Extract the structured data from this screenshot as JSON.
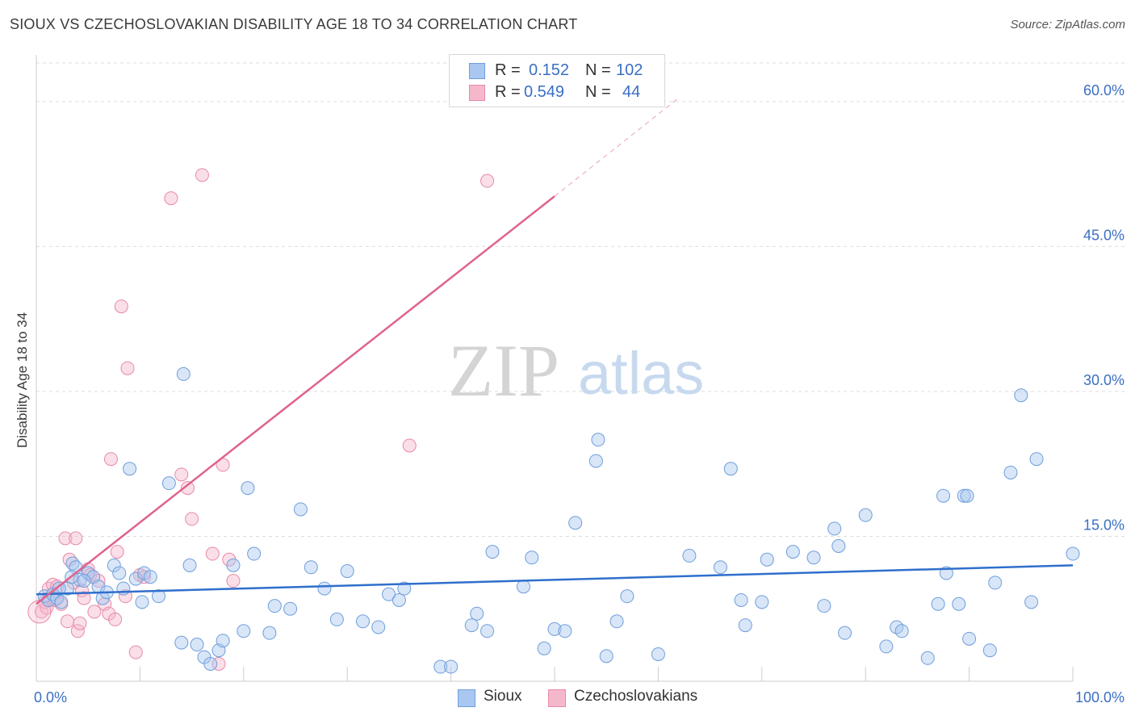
{
  "title": "SIOUX VS CZECHOSLOVAKIAN DISABILITY AGE 18 TO 34 CORRELATION CHART",
  "source": "Source: ZipAtlas.com",
  "watermark": {
    "zip": "ZIP",
    "atlas": "atlas"
  },
  "legend": {
    "r_label": "R =",
    "n_label": "N =",
    "sioux": {
      "r": "0.152",
      "n": "102"
    },
    "czech": {
      "r": "0.549",
      "n": "44"
    }
  },
  "colors": {
    "sioux_fill": "#a9c7f0",
    "sioux_stroke": "#6f9edb",
    "sioux_line": "#2f6fcc",
    "czech_fill": "#f5b8cb",
    "czech_stroke": "#e889a8",
    "czech_line": "#e0628c",
    "tick_text": "#3a6fc4",
    "grid": "#dddddd"
  },
  "chart_data": {
    "type": "scatter",
    "title": "SIOUX VS CZECHOSLOVAKIAN DISABILITY AGE 18 TO 34 CORRELATION CHART",
    "xlabel": "",
    "ylabel": "Disability Age 18 to 34",
    "xlim": [
      0,
      100
    ],
    "ylim": [
      0,
      64
    ],
    "x_tick_labels": [
      "0.0%",
      "100.0%"
    ],
    "y_ticks": [
      15,
      30,
      45,
      60
    ],
    "y_tick_labels": [
      "15.0%",
      "30.0%",
      "45.0%",
      "60.0%"
    ],
    "grid": true,
    "series": [
      {
        "name": "Sioux",
        "r": 0.152,
        "n": 102,
        "trend": {
          "x0": 0,
          "y0": 9.0,
          "x1": 100,
          "y1": 12.0
        },
        "points": [
          [
            0.8,
            8.8
          ],
          [
            1.2,
            8.4
          ],
          [
            1.6,
            9.0
          ],
          [
            2.0,
            8.6
          ],
          [
            2.4,
            8.2
          ],
          [
            3.0,
            9.6
          ],
          [
            3.5,
            12.2
          ],
          [
            3.8,
            11.8
          ],
          [
            4.2,
            10.5
          ],
          [
            5.0,
            11.2
          ],
          [
            5.5,
            10.8
          ],
          [
            6.0,
            9.8
          ],
          [
            6.4,
            8.6
          ],
          [
            6.8,
            9.2
          ],
          [
            7.5,
            12.0
          ],
          [
            8.0,
            11.2
          ],
          [
            8.4,
            9.6
          ],
          [
            9.0,
            22.0
          ],
          [
            9.6,
            10.6
          ],
          [
            10.2,
            8.2
          ],
          [
            10.4,
            11.2
          ],
          [
            11.0,
            10.8
          ],
          [
            11.8,
            8.8
          ],
          [
            12.8,
            20.5
          ],
          [
            14.0,
            4.0
          ],
          [
            14.2,
            31.8
          ],
          [
            14.8,
            12.0
          ],
          [
            15.5,
            3.8
          ],
          [
            16.2,
            2.5
          ],
          [
            16.8,
            1.8
          ],
          [
            17.6,
            3.2
          ],
          [
            18.0,
            4.2
          ],
          [
            19.0,
            12.0
          ],
          [
            20.0,
            5.2
          ],
          [
            20.4,
            20.0
          ],
          [
            21.0,
            13.2
          ],
          [
            22.5,
            5.0
          ],
          [
            23.0,
            7.8
          ],
          [
            24.5,
            7.5
          ],
          [
            25.5,
            17.8
          ],
          [
            26.5,
            11.8
          ],
          [
            27.8,
            9.6
          ],
          [
            29.0,
            6.4
          ],
          [
            30.0,
            11.4
          ],
          [
            31.5,
            6.2
          ],
          [
            33.0,
            5.6
          ],
          [
            34.0,
            9.0
          ],
          [
            35.0,
            8.4
          ],
          [
            35.5,
            9.6
          ],
          [
            39.0,
            1.5
          ],
          [
            40.0,
            1.5
          ],
          [
            42.0,
            5.8
          ],
          [
            42.5,
            7.0
          ],
          [
            43.5,
            5.2
          ],
          [
            44.0,
            13.4
          ],
          [
            47.0,
            9.8
          ],
          [
            47.8,
            12.8
          ],
          [
            49.0,
            3.4
          ],
          [
            50.0,
            5.4
          ],
          [
            51.0,
            5.2
          ],
          [
            52.0,
            16.4
          ],
          [
            54.0,
            22.8
          ],
          [
            54.2,
            25.0
          ],
          [
            55.0,
            2.6
          ],
          [
            56.0,
            6.2
          ],
          [
            57.0,
            8.8
          ],
          [
            60.0,
            2.8
          ],
          [
            63.0,
            13.0
          ],
          [
            66.0,
            11.8
          ],
          [
            67.0,
            22.0
          ],
          [
            68.0,
            8.4
          ],
          [
            68.4,
            5.8
          ],
          [
            70.0,
            8.2
          ],
          [
            70.5,
            12.6
          ],
          [
            73.0,
            13.4
          ],
          [
            75.0,
            12.8
          ],
          [
            76.0,
            7.8
          ],
          [
            77.0,
            15.8
          ],
          [
            77.4,
            14.0
          ],
          [
            78.0,
            5.0
          ],
          [
            80.0,
            17.2
          ],
          [
            82.0,
            3.6
          ],
          [
            83.0,
            5.6
          ],
          [
            83.5,
            5.2
          ],
          [
            86.0,
            2.4
          ],
          [
            87.0,
            8.0
          ],
          [
            87.5,
            19.2
          ],
          [
            87.8,
            11.2
          ],
          [
            89.0,
            8.0
          ],
          [
            89.5,
            19.2
          ],
          [
            89.8,
            19.2
          ],
          [
            90.0,
            4.4
          ],
          [
            92.0,
            3.2
          ],
          [
            92.5,
            10.2
          ],
          [
            94.0,
            21.6
          ],
          [
            95.0,
            29.6
          ],
          [
            96.0,
            8.2
          ],
          [
            96.5,
            23.0
          ],
          [
            100.0,
            13.2
          ],
          [
            3.4,
            10.8
          ],
          [
            4.6,
            10.4
          ],
          [
            2.2,
            9.6
          ]
        ]
      },
      {
        "name": "Czechoslovakians",
        "r": 0.549,
        "n": 44,
        "trend": {
          "x0": 0,
          "y0": 8.0,
          "x1": 50,
          "y1": 50.2,
          "dash_to_x": 62,
          "dash_to_y": 60.4
        },
        "points": [
          [
            0.5,
            7.2
          ],
          [
            0.8,
            8.2
          ],
          [
            1.0,
            7.6
          ],
          [
            1.2,
            9.6
          ],
          [
            1.6,
            10.0
          ],
          [
            1.8,
            8.4
          ],
          [
            2.0,
            9.8
          ],
          [
            2.4,
            8.0
          ],
          [
            2.8,
            14.8
          ],
          [
            3.0,
            6.2
          ],
          [
            3.2,
            12.6
          ],
          [
            3.6,
            10.2
          ],
          [
            3.8,
            14.8
          ],
          [
            4.0,
            5.2
          ],
          [
            4.2,
            6.0
          ],
          [
            4.4,
            9.4
          ],
          [
            4.6,
            8.6
          ],
          [
            5.0,
            11.6
          ],
          [
            5.2,
            11.0
          ],
          [
            5.6,
            7.2
          ],
          [
            6.0,
            10.4
          ],
          [
            6.6,
            8.0
          ],
          [
            7.0,
            7.0
          ],
          [
            7.2,
            23.0
          ],
          [
            7.6,
            6.4
          ],
          [
            7.8,
            13.4
          ],
          [
            8.2,
            38.8
          ],
          [
            8.6,
            8.8
          ],
          [
            8.8,
            32.4
          ],
          [
            9.6,
            3.0
          ],
          [
            10.0,
            11.0
          ],
          [
            10.4,
            10.8
          ],
          [
            13.0,
            50.0
          ],
          [
            14.0,
            21.4
          ],
          [
            14.6,
            20.0
          ],
          [
            15.0,
            16.8
          ],
          [
            16.0,
            52.4
          ],
          [
            17.0,
            13.2
          ],
          [
            17.6,
            1.8
          ],
          [
            18.0,
            22.4
          ],
          [
            18.6,
            12.6
          ],
          [
            19.0,
            10.4
          ],
          [
            36.0,
            24.4
          ],
          [
            43.5,
            51.8
          ]
        ]
      }
    ]
  },
  "bottom_legend": {
    "sioux": "Sioux",
    "czech": "Czechoslovakians"
  }
}
